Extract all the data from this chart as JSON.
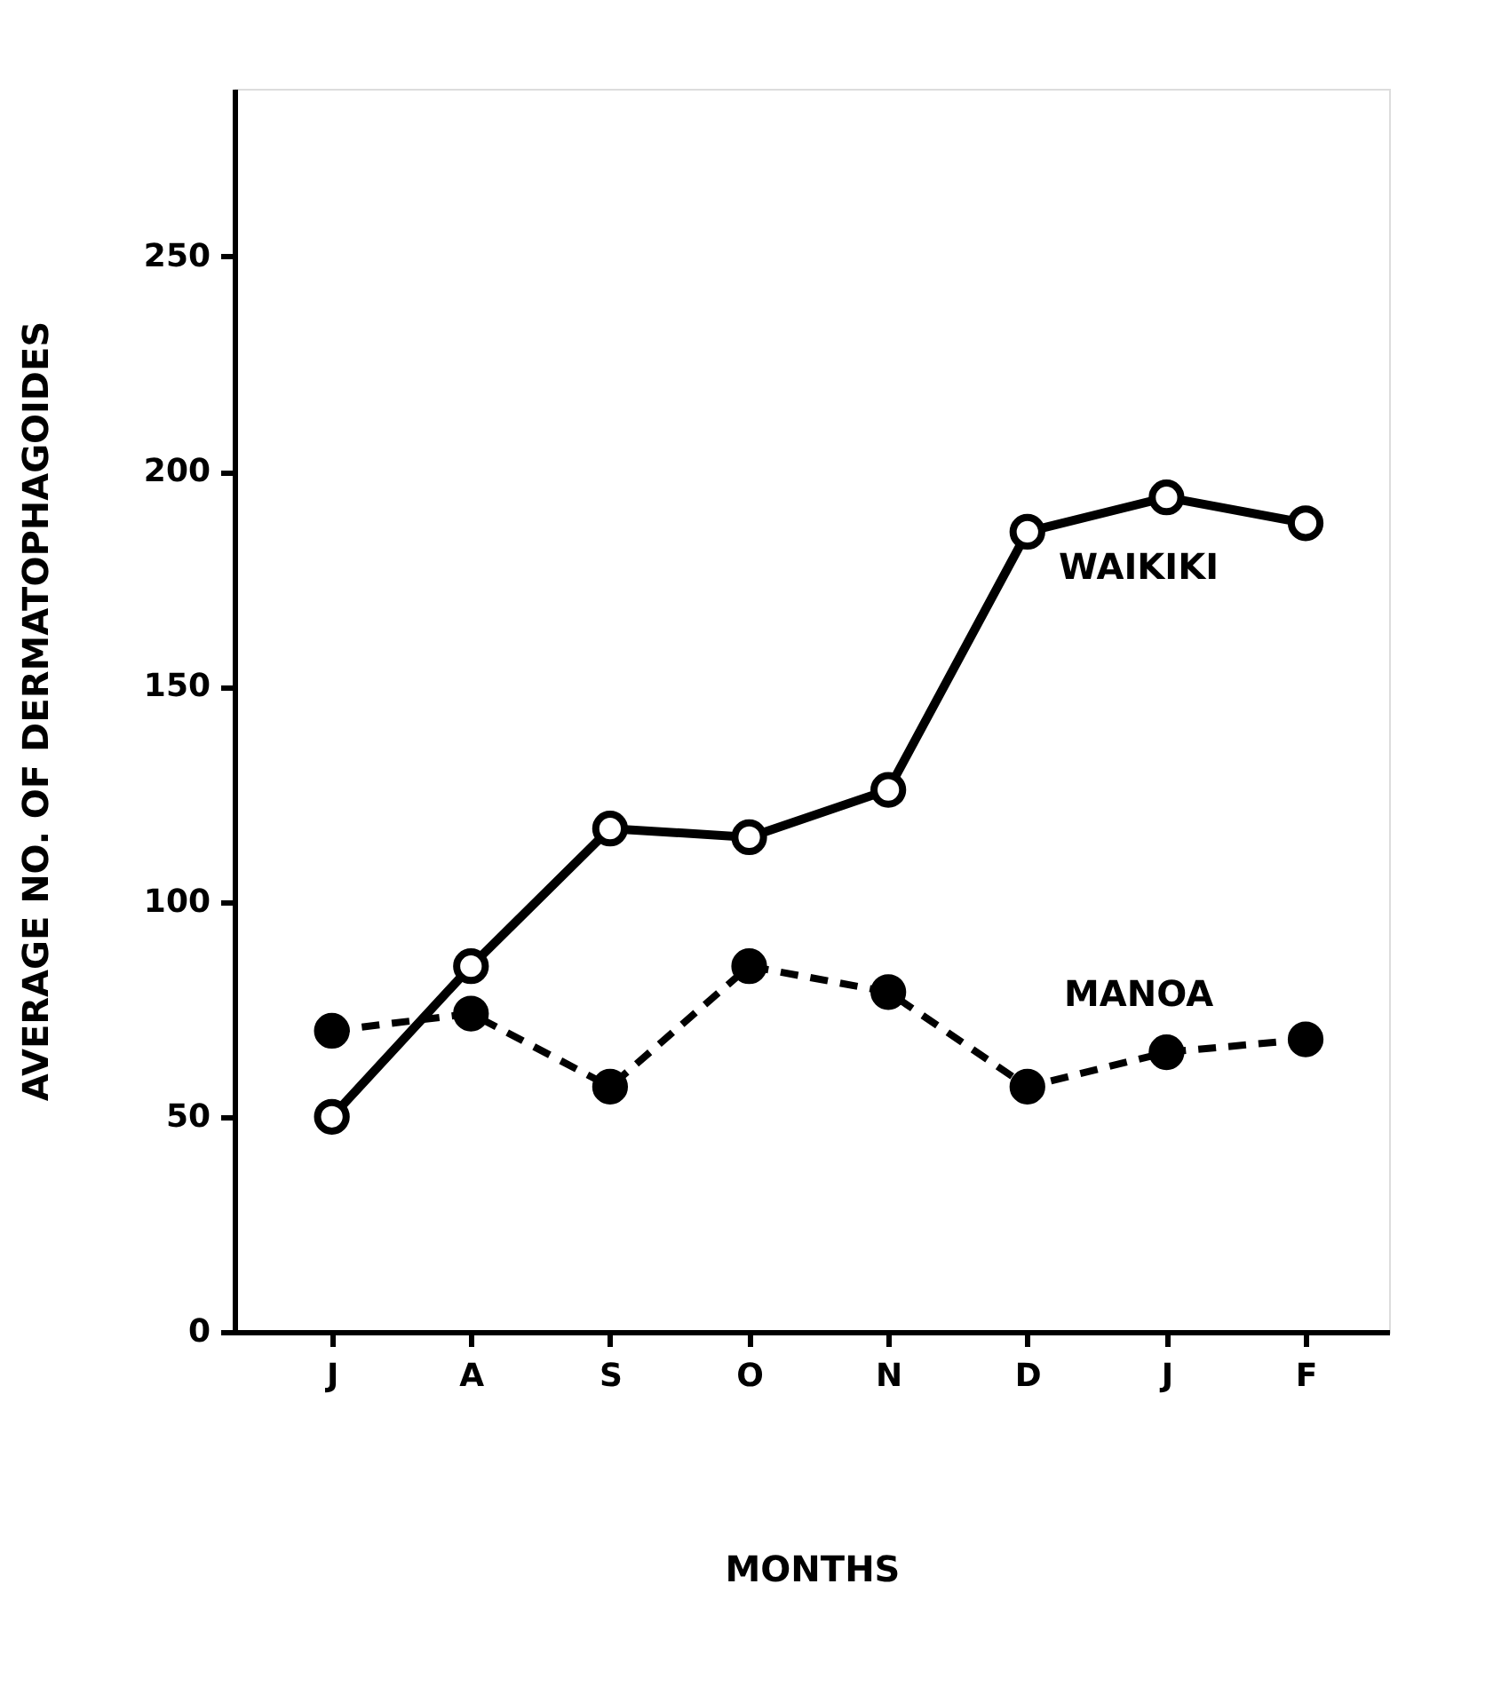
{
  "chart_data": {
    "type": "line",
    "xlabel": "MONTHS",
    "ylabel": "AVERAGE  NO. OF  DERMATOPHAGOIDES",
    "categories": [
      "J",
      "A",
      "S",
      "O",
      "N",
      "D",
      "J",
      "F"
    ],
    "series": [
      {
        "name": "WAIKIKI",
        "color": "#000000",
        "line_style": "solid",
        "values": [
          50,
          85,
          117,
          115,
          126,
          186,
          194,
          188
        ]
      },
      {
        "name": "MANOA",
        "color": "#000000",
        "line_style": "dashed",
        "values": [
          70,
          74,
          57,
          85,
          79,
          57,
          65,
          68
        ]
      }
    ],
    "ylim": [
      0,
      289
    ],
    "yticks": [
      0,
      50,
      100,
      150,
      200,
      250
    ],
    "grid": false,
    "legend": false,
    "marker": "circle"
  }
}
